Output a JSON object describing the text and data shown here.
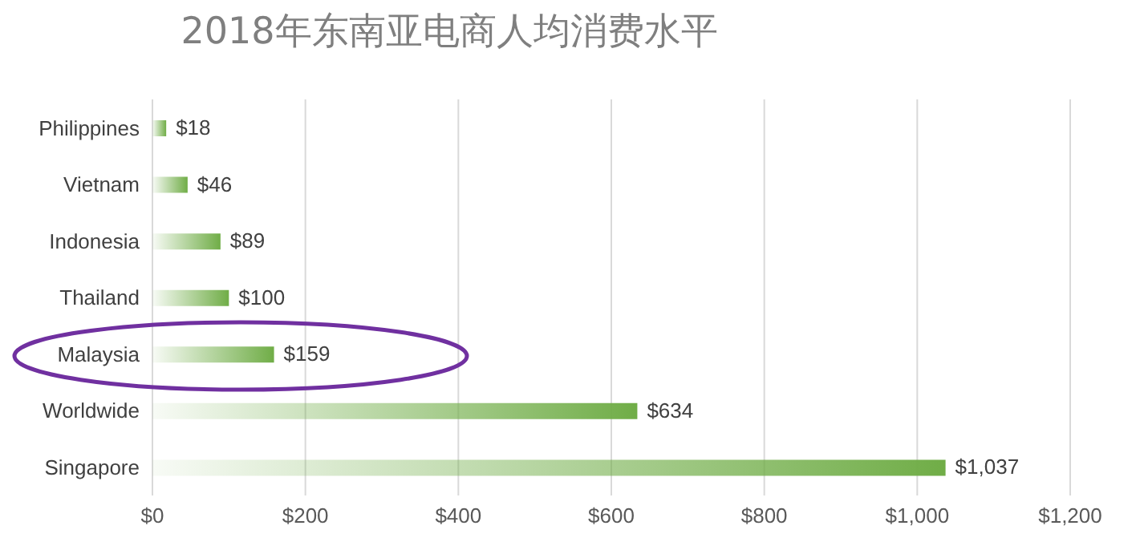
{
  "chart_data": {
    "type": "bar",
    "orientation": "horizontal",
    "title": "2018年东南亚电商人均消费水平",
    "categories": [
      "Philippines",
      "Vietnam",
      "Indonesia",
      "Thailand",
      "Malaysia",
      "Worldwide",
      "Singapore"
    ],
    "values": [
      18,
      46,
      89,
      100,
      159,
      634,
      1037
    ],
    "value_labels": [
      "$18",
      "$46",
      "$89",
      "$100",
      "$159",
      "$634",
      "$1,037"
    ],
    "color": "#70ad47",
    "xlim": [
      0,
      1200
    ],
    "xticks": [
      {
        "value": 0,
        "label": "$0"
      },
      {
        "value": 200,
        "label": "$200"
      },
      {
        "value": 400,
        "label": "$400"
      },
      {
        "value": 600,
        "label": "$600"
      },
      {
        "value": 800,
        "label": "$800"
      },
      {
        "value": 1000,
        "label": "$1,000"
      },
      {
        "value": 1200,
        "label": "$1,200"
      }
    ],
    "grid": "x",
    "legend": false
  }
}
